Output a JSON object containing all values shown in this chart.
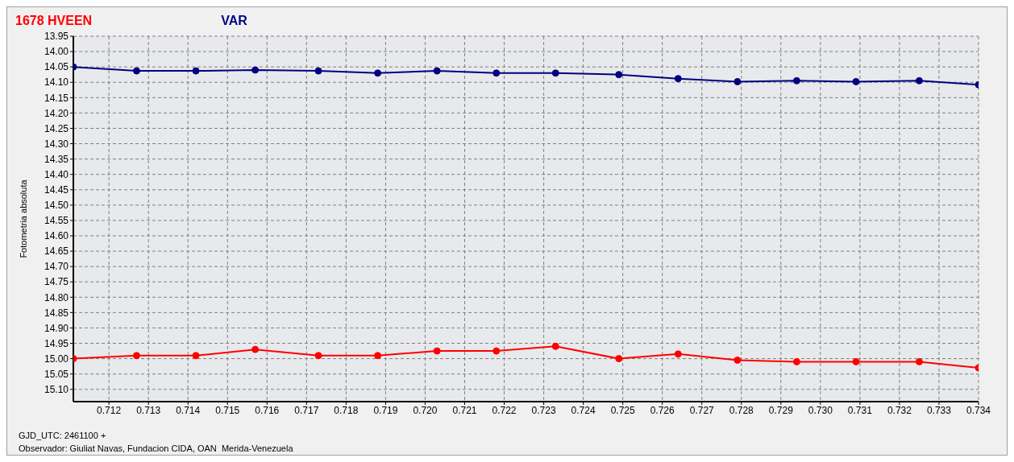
{
  "chart_data": {
    "type": "line",
    "ylabel": "Fotometria absoluta",
    "legend": "top left",
    "grid": true,
    "marker": "circle",
    "line_style": "solid",
    "x": [
      0.7111,
      0.7127,
      0.7142,
      0.7157,
      0.7173,
      0.7188,
      0.7203,
      0.7218,
      0.7233,
      0.7249,
      0.7264,
      0.7279,
      0.7294,
      0.7309,
      0.7325,
      0.734
    ],
    "series": [
      {
        "name": "1678 HVEEN",
        "color": "#ff0000",
        "values": [
          15.0,
          14.99,
          14.99,
          14.97,
          14.99,
          14.99,
          14.975,
          14.975,
          14.96,
          15.0,
          14.985,
          15.005,
          15.01,
          15.01,
          15.01,
          15.03
        ]
      },
      {
        "name": "VAR",
        "color": "#000080",
        "values": [
          14.05,
          14.063,
          14.063,
          14.06,
          14.063,
          14.07,
          14.063,
          14.07,
          14.07,
          14.075,
          14.088,
          14.098,
          14.095,
          14.098,
          14.095,
          14.108
        ]
      }
    ],
    "xlim": [
      0.7111,
      0.734
    ],
    "xticks": [
      0.712,
      0.713,
      0.714,
      0.715,
      0.716,
      0.717,
      0.718,
      0.719,
      {
        "value": 0.72,
        "label": "0.720"
      },
      0.721,
      0.722,
      0.723,
      0.724,
      0.725,
      0.726,
      0.727,
      0.728,
      0.729,
      {
        "value": 0.73,
        "label": "0.730"
      },
      0.731,
      0.732,
      0.733,
      0.734
    ],
    "ylim": [
      15.14,
      13.95
    ],
    "yticks": [
      13.95,
      {
        "value": 14,
        "label": "14.00"
      },
      14.05,
      {
        "value": 14.1,
        "label": "14.10"
      },
      14.15,
      {
        "value": 14.2,
        "label": "14.20"
      },
      14.25,
      {
        "value": 14.3,
        "label": "14.30"
      },
      14.35,
      {
        "value": 14.4,
        "label": "14.40"
      },
      14.45,
      {
        "value": 14.5,
        "label": "14.50"
      },
      14.55,
      {
        "value": 14.6,
        "label": "14.60"
      },
      14.65,
      {
        "value": 14.7,
        "label": "14.70"
      },
      14.75,
      {
        "value": 14.8,
        "label": "14.80"
      },
      14.85,
      {
        "value": 14.9,
        "label": "14.90"
      },
      14.95,
      {
        "value": 15,
        "label": "15.00"
      },
      15.05,
      {
        "value": 15.1,
        "label": "15.10"
      }
    ],
    "annotations": [
      "GJD_UTC: 2461100 +",
      "Observador: Giuliat Navas, Fundacion CIDA, OAN  Merida-Venezuela"
    ]
  }
}
